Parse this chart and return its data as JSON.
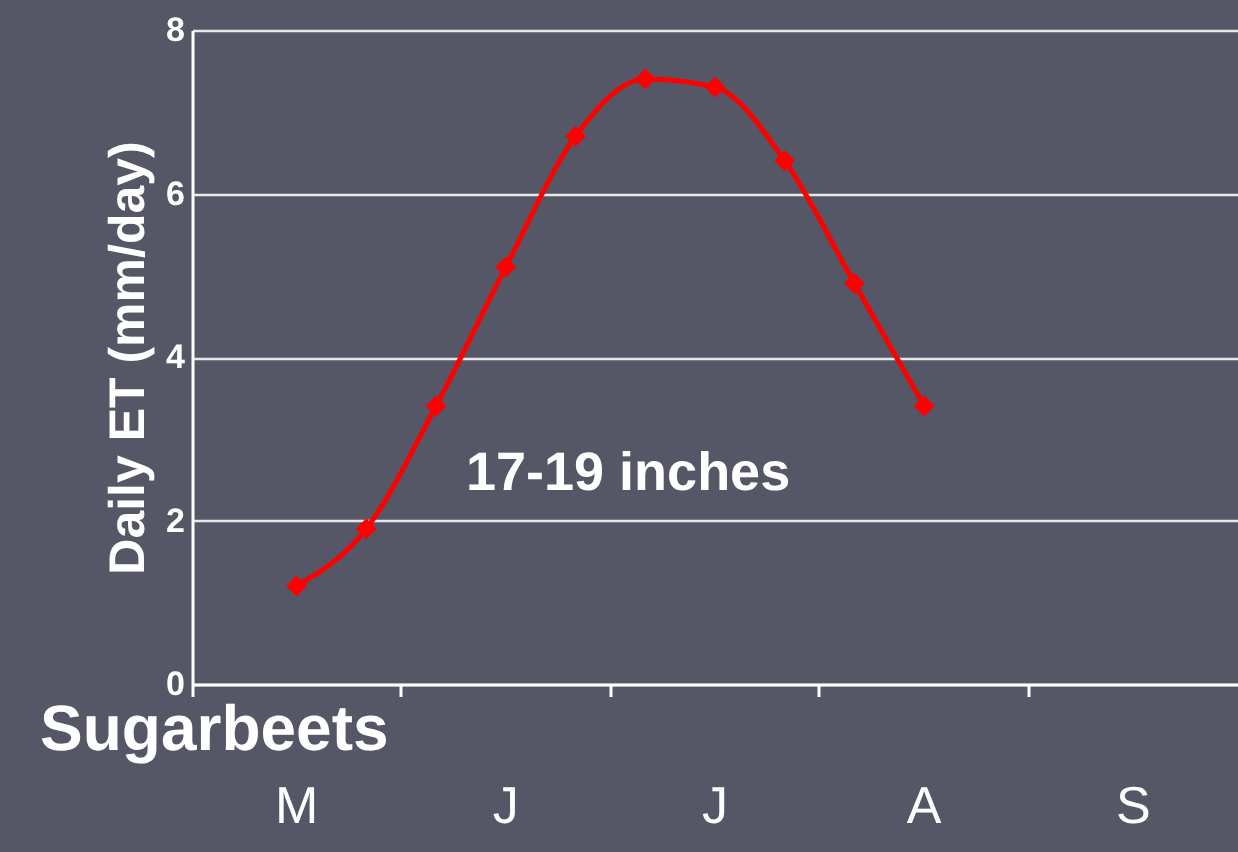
{
  "chart_data": {
    "type": "line",
    "title": "Sugarbeets",
    "ylabel": "Daily ET (mm/day)",
    "annotations": [
      "17-19 inches"
    ],
    "categories": [
      null,
      "M",
      null,
      null,
      "J",
      null,
      null,
      "J",
      null,
      null,
      "A",
      null,
      null,
      "S",
      null
    ],
    "series": [
      {
        "color": "#ff0000",
        "values": [
          null,
          1.2,
          1.9,
          3.4,
          5.1,
          6.7,
          7.4,
          7.3,
          6.4,
          4.9,
          3.4,
          null,
          null,
          null,
          null
        ]
      }
    ],
    "ylim": [
      0,
      8
    ],
    "yticks": [
      0,
      2,
      4,
      6,
      8
    ],
    "grid": "y",
    "legend": false,
    "marker": "diamond",
    "line_style": "solid"
  }
}
